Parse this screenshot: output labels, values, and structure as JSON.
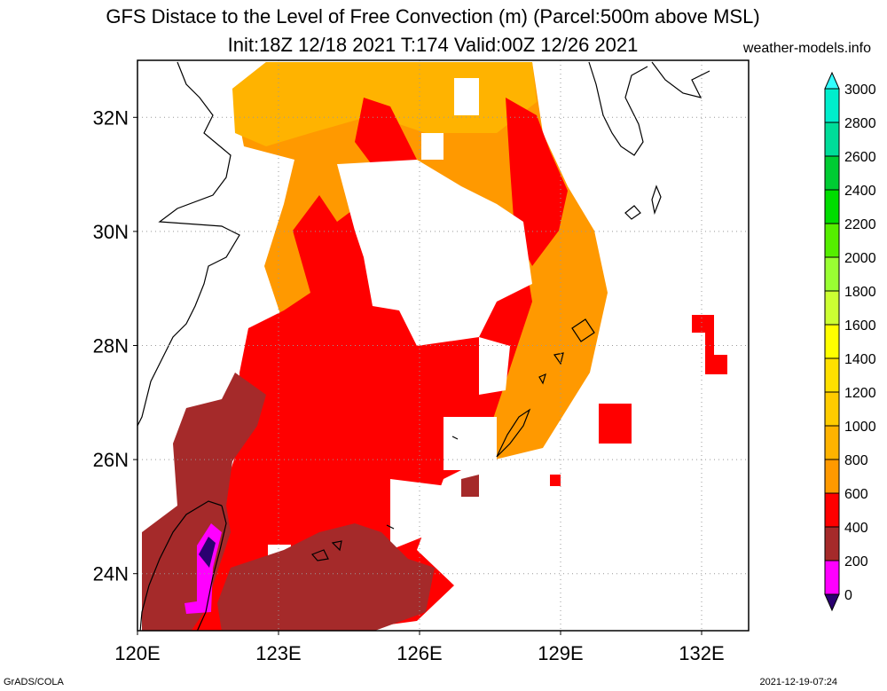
{
  "title_line1": "GFS Distace to the Level of Free Convection (m) (Parcel:500m above MSL)",
  "title_line2": "Init:18Z 12/18 2021 T:174 Valid:00Z 12/26 2021",
  "credit": "weather-models.info",
  "footer_left": "GrADS/COLA",
  "footer_right": "2021-12-19-07:24",
  "map": {
    "lon_range": [
      120,
      133
    ],
    "lat_range": [
      23,
      33
    ],
    "lon_ticks": [
      {
        "value": 120,
        "label": "120E"
      },
      {
        "value": 123,
        "label": "123E"
      },
      {
        "value": 126,
        "label": "126E"
      },
      {
        "value": 129,
        "label": "129E"
      },
      {
        "value": 132,
        "label": "132E"
      }
    ],
    "lat_ticks": [
      {
        "value": 24,
        "label": "24N"
      },
      {
        "value": 26,
        "label": "26N"
      },
      {
        "value": 28,
        "label": "28N"
      },
      {
        "value": 30,
        "label": "30N"
      },
      {
        "value": 32,
        "label": "32N"
      }
    ],
    "grid": "dotted"
  },
  "colorbar": {
    "levels": [
      "0",
      "200",
      "400",
      "600",
      "800",
      "1000",
      "1200",
      "1400",
      "1600",
      "1800",
      "2000",
      "2200",
      "2400",
      "2600",
      "2800",
      "3000"
    ],
    "colors": [
      "#2a0070",
      "#ff00ff",
      "#a52a2a",
      "#ff0000",
      "#ff9900",
      "#ffb300",
      "#ffcc00",
      "#ffe000",
      "#ffff00",
      "#ccff33",
      "#99ff33",
      "#55ee00",
      "#00dd00",
      "#00cc33",
      "#00dd99",
      "#00eecc",
      "#33ffff"
    ]
  }
}
